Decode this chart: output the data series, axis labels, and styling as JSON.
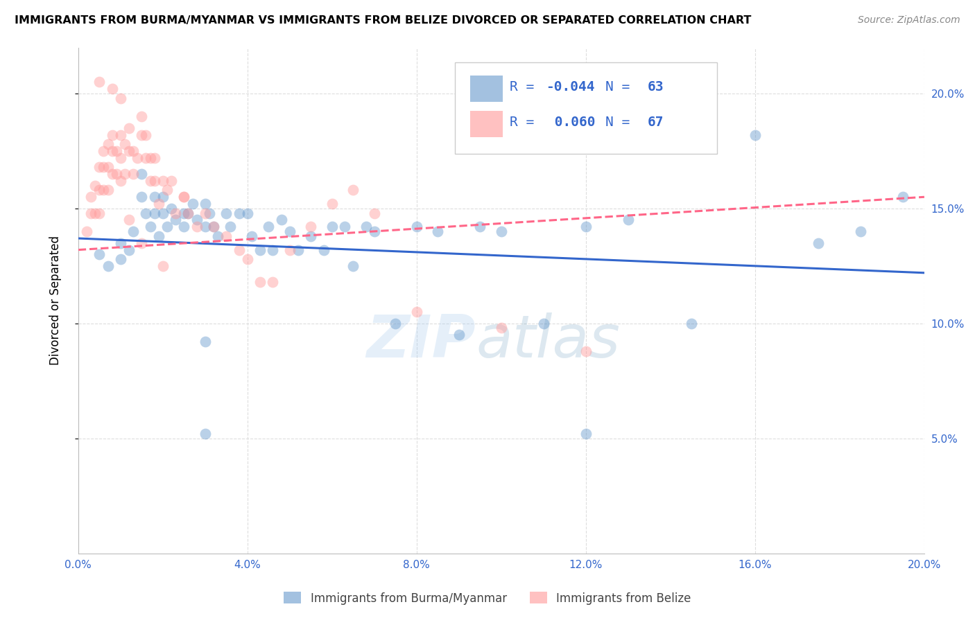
{
  "title": "IMMIGRANTS FROM BURMA/MYANMAR VS IMMIGRANTS FROM BELIZE DIVORCED OR SEPARATED CORRELATION CHART",
  "source": "Source: ZipAtlas.com",
  "ylabel": "Divorced or Separated",
  "xmin": 0.0,
  "xmax": 0.2,
  "ymin": 0.0,
  "ymax": 0.22,
  "xticks": [
    0.0,
    0.04,
    0.08,
    0.12,
    0.16,
    0.2
  ],
  "yticks": [
    0.05,
    0.1,
    0.15,
    0.2
  ],
  "ytick_labels": [
    "5.0%",
    "10.0%",
    "15.0%",
    "20.0%"
  ],
  "xtick_labels": [
    "0.0%",
    "4.0%",
    "8.0%",
    "12.0%",
    "16.0%",
    "20.0%"
  ],
  "color_blue": "#6699CC",
  "color_pink": "#FF9999",
  "legend_blue_R": "R = ",
  "legend_blue_Rval": "-0.044",
  "legend_blue_N": "N = ",
  "legend_blue_Nval": "63",
  "legend_pink_R": "R =  ",
  "legend_pink_Rval": "0.060",
  "legend_pink_N": "N = ",
  "legend_pink_Nval": "67",
  "legend_bottom_blue": "Immigrants from Burma/Myanmar",
  "legend_bottom_pink": "Immigrants from Belize",
  "blue_scatter_x": [
    0.005,
    0.007,
    0.01,
    0.01,
    0.012,
    0.013,
    0.015,
    0.015,
    0.016,
    0.017,
    0.018,
    0.018,
    0.019,
    0.02,
    0.02,
    0.021,
    0.022,
    0.023,
    0.025,
    0.025,
    0.026,
    0.027,
    0.028,
    0.03,
    0.03,
    0.031,
    0.032,
    0.033,
    0.035,
    0.036,
    0.038,
    0.04,
    0.041,
    0.043,
    0.045,
    0.046,
    0.048,
    0.05,
    0.052,
    0.055,
    0.058,
    0.06,
    0.063,
    0.065,
    0.068,
    0.07,
    0.075,
    0.08,
    0.085,
    0.09,
    0.095,
    0.1,
    0.11,
    0.12,
    0.13,
    0.145,
    0.16,
    0.175,
    0.185,
    0.03,
    0.12,
    0.03,
    0.195
  ],
  "blue_scatter_y": [
    0.13,
    0.125,
    0.135,
    0.128,
    0.132,
    0.14,
    0.165,
    0.155,
    0.148,
    0.142,
    0.155,
    0.148,
    0.138,
    0.155,
    0.148,
    0.142,
    0.15,
    0.145,
    0.148,
    0.142,
    0.148,
    0.152,
    0.145,
    0.152,
    0.142,
    0.148,
    0.142,
    0.138,
    0.148,
    0.142,
    0.148,
    0.148,
    0.138,
    0.132,
    0.142,
    0.132,
    0.145,
    0.14,
    0.132,
    0.138,
    0.132,
    0.142,
    0.142,
    0.125,
    0.142,
    0.14,
    0.1,
    0.142,
    0.14,
    0.095,
    0.142,
    0.14,
    0.1,
    0.142,
    0.145,
    0.1,
    0.182,
    0.135,
    0.14,
    0.052,
    0.052,
    0.092,
    0.155
  ],
  "pink_scatter_x": [
    0.002,
    0.003,
    0.003,
    0.004,
    0.004,
    0.005,
    0.005,
    0.005,
    0.006,
    0.006,
    0.006,
    0.007,
    0.007,
    0.007,
    0.008,
    0.008,
    0.008,
    0.009,
    0.009,
    0.01,
    0.01,
    0.01,
    0.011,
    0.011,
    0.012,
    0.012,
    0.013,
    0.013,
    0.014,
    0.015,
    0.015,
    0.016,
    0.016,
    0.017,
    0.017,
    0.018,
    0.018,
    0.019,
    0.02,
    0.021,
    0.022,
    0.023,
    0.025,
    0.026,
    0.028,
    0.03,
    0.032,
    0.035,
    0.038,
    0.04,
    0.043,
    0.046,
    0.05,
    0.055,
    0.06,
    0.065,
    0.07,
    0.08,
    0.1,
    0.12,
    0.005,
    0.008,
    0.01,
    0.012,
    0.015,
    0.02,
    0.025
  ],
  "pink_scatter_y": [
    0.14,
    0.148,
    0.155,
    0.16,
    0.148,
    0.168,
    0.158,
    0.148,
    0.175,
    0.168,
    0.158,
    0.178,
    0.168,
    0.158,
    0.182,
    0.175,
    0.165,
    0.175,
    0.165,
    0.182,
    0.172,
    0.162,
    0.178,
    0.165,
    0.185,
    0.175,
    0.175,
    0.165,
    0.172,
    0.19,
    0.182,
    0.172,
    0.182,
    0.172,
    0.162,
    0.172,
    0.162,
    0.152,
    0.162,
    0.158,
    0.162,
    0.148,
    0.155,
    0.148,
    0.142,
    0.148,
    0.142,
    0.138,
    0.132,
    0.128,
    0.118,
    0.118,
    0.132,
    0.142,
    0.152,
    0.158,
    0.148,
    0.105,
    0.098,
    0.088,
    0.205,
    0.202,
    0.198,
    0.145,
    0.135,
    0.125,
    0.155
  ],
  "blue_trendline_x": [
    0.0,
    0.2
  ],
  "blue_trendline_y": [
    0.137,
    0.122
  ],
  "pink_trendline_x": [
    0.0,
    0.2
  ],
  "pink_trendline_y": [
    0.132,
    0.155
  ],
  "watermark_zip": "ZIP",
  "watermark_atlas": "atlas",
  "background_color": "#FFFFFF",
  "grid_color": "#DDDDDD",
  "tick_color": "#3366CC",
  "trend_blue_color": "#3366CC",
  "trend_pink_color": "#FF6688"
}
